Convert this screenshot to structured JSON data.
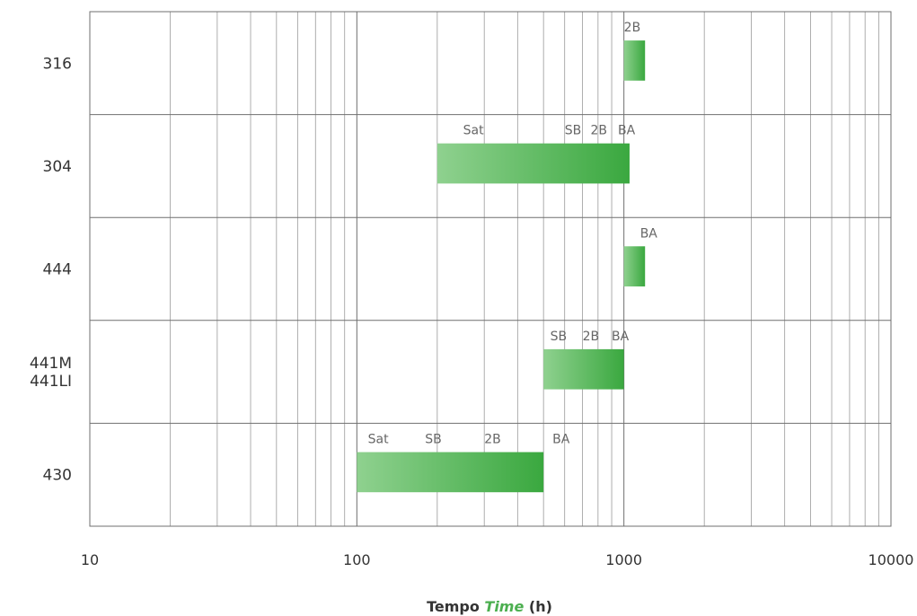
{
  "chart_data": {
    "type": "bar",
    "orientation": "horizontal",
    "x_scale": "log",
    "xlim": [
      10,
      10000
    ],
    "x_ticks": [
      "10",
      "100",
      "1000",
      "10000"
    ],
    "grid": true,
    "xlabel_parts": [
      "Tempo",
      "Time",
      "(h)"
    ],
    "colors": {
      "bar_start": "#8fd18f",
      "bar_end": "#3aa83f",
      "italic_label": "#4caf50"
    },
    "categories": [
      {
        "label_lines": [
          "316"
        ],
        "bar": [
          1000,
          1200
        ],
        "finish_labels": [
          {
            "text": "2B",
            "x": 1000
          }
        ]
      },
      {
        "label_lines": [
          "304"
        ],
        "bar": [
          200,
          1050
        ],
        "finish_labels": [
          {
            "text": "Sat",
            "x": 250
          },
          {
            "text": "SB",
            "x": 600
          },
          {
            "text": "2B",
            "x": 750
          },
          {
            "text": "BA",
            "x": 950
          }
        ]
      },
      {
        "label_lines": [
          "444"
        ],
        "bar": [
          1000,
          1200
        ],
        "finish_labels": [
          {
            "text": "BA",
            "x": 1150
          }
        ]
      },
      {
        "label_lines": [
          "441M",
          "441LI"
        ],
        "bar": [
          500,
          1000
        ],
        "finish_labels": [
          {
            "text": "SB",
            "x": 530
          },
          {
            "text": "2B",
            "x": 700
          },
          {
            "text": "BA",
            "x": 900
          }
        ]
      },
      {
        "label_lines": [
          "430"
        ],
        "bar": [
          100,
          500
        ],
        "finish_labels": [
          {
            "text": "Sat",
            "x": 110
          },
          {
            "text": "SB",
            "x": 180
          },
          {
            "text": "2B",
            "x": 300
          },
          {
            "text": "BA",
            "x": 540
          }
        ]
      }
    ]
  }
}
